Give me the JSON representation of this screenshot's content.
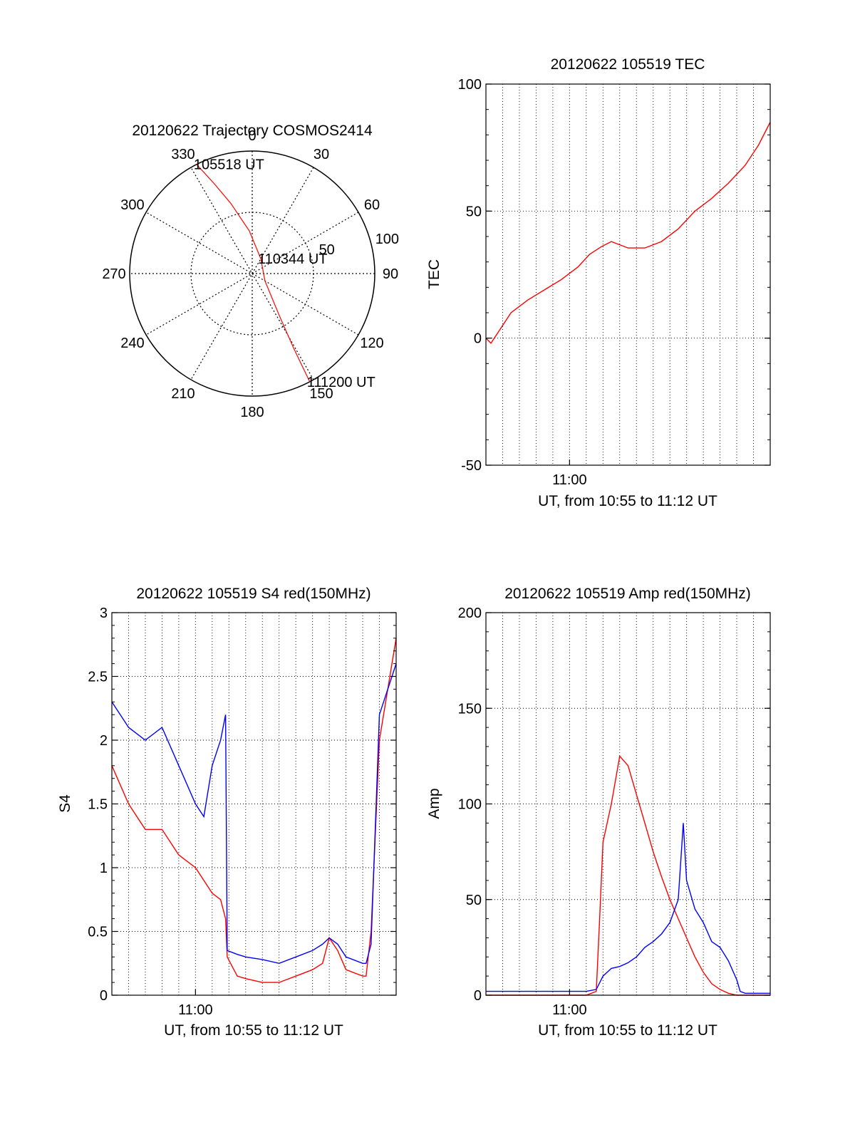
{
  "colors": {
    "red": "#ff0000",
    "blue": "#0000ff",
    "axis": "#000000",
    "grid": "#000000"
  },
  "chart_data": [
    {
      "id": "trajectory",
      "type": "polar",
      "title": "20120622 Trajectory COSMOS2414",
      "angle_labels": [
        "0",
        "30",
        "60",
        "90",
        "120",
        "150",
        "180",
        "210",
        "240",
        "270",
        "300",
        "330"
      ],
      "radius_labels": [
        "50",
        "100"
      ],
      "rlim": [
        0,
        100
      ],
      "grid": true,
      "path": [
        [
          333,
          100
        ],
        [
          337,
          80
        ],
        [
          343,
          60
        ],
        [
          356,
          35
        ],
        [
          30,
          14
        ],
        [
          120,
          12
        ],
        [
          147,
          40
        ],
        [
          151,
          70
        ],
        [
          152,
          100
        ]
      ],
      "annotations": [
        {
          "text": "105518 UT",
          "angle": 333,
          "r": 100
        },
        {
          "text": "110344 UT",
          "angle": 30,
          "r": 14
        },
        {
          "text": "111200 UT",
          "angle": 152,
          "r": 100
        }
      ]
    },
    {
      "id": "tec",
      "type": "line",
      "title": "20120622 105519 TEC",
      "xlabel": "UT, from 10:55 to 11:12 UT",
      "ylabel": "TEC",
      "xlim": [
        0,
        17
      ],
      "ylim": [
        -50,
        100
      ],
      "yticks": [
        -50,
        0,
        50,
        100
      ],
      "xticks": [
        {
          "value": 5,
          "label": "11:00"
        }
      ],
      "grid": true,
      "series": [
        {
          "color": "red",
          "x": [
            0,
            0.3,
            0.8,
            1.5,
            2.5,
            3.5,
            4.5,
            5.5,
            6.2,
            6.9,
            7.5,
            8.5,
            9.5,
            10.5,
            11.5,
            12.5,
            13.5,
            14.5,
            15.5,
            16.3,
            17
          ],
          "y": [
            0,
            -2,
            3,
            10,
            15,
            19,
            23,
            28,
            33,
            36,
            38,
            35.5,
            35.5,
            38,
            43,
            50,
            55,
            61,
            68,
            76,
            85
          ]
        }
      ]
    },
    {
      "id": "s4",
      "type": "line",
      "title": "20120622 105519 S4 red(150MHz)",
      "xlabel": "UT, from 10:55 to 11:12 UT",
      "ylabel": "S4",
      "xlim": [
        0,
        17
      ],
      "ylim": [
        0,
        3
      ],
      "yticks": [
        0,
        0.5,
        1,
        1.5,
        2,
        2.5,
        3
      ],
      "ytick_labels": [
        "0",
        "0.5",
        "1",
        "1.5",
        "2",
        "2.5",
        "3"
      ],
      "xticks": [
        {
          "value": 5,
          "label": "11:00"
        }
      ],
      "grid": true,
      "series": [
        {
          "color": "red",
          "x": [
            0,
            1,
            2,
            3,
            4,
            5,
            5.5,
            6,
            6.5,
            6.8,
            6.9,
            7.5,
            8,
            9,
            10,
            11,
            12,
            12.6,
            13,
            13.5,
            14,
            15,
            15.2,
            15.5,
            16,
            17
          ],
          "y": [
            1.8,
            1.5,
            1.3,
            1.3,
            1.1,
            1.0,
            0.9,
            0.8,
            0.75,
            0.6,
            0.3,
            0.15,
            0.13,
            0.1,
            0.1,
            0.15,
            0.2,
            0.25,
            0.45,
            0.35,
            0.2,
            0.15,
            0.15,
            0.5,
            2.0,
            2.8
          ]
        },
        {
          "color": "blue",
          "x": [
            0,
            1,
            2,
            3,
            4,
            5,
            5.5,
            6,
            6.5,
            6.8,
            6.9,
            7.5,
            8,
            9,
            10,
            11,
            12,
            12.6,
            13,
            13.5,
            14,
            15,
            15.2,
            15.5,
            16,
            17
          ],
          "y": [
            2.3,
            2.1,
            2.0,
            2.1,
            1.8,
            1.5,
            1.4,
            1.8,
            2.0,
            2.2,
            0.35,
            0.32,
            0.3,
            0.28,
            0.25,
            0.3,
            0.35,
            0.4,
            0.45,
            0.4,
            0.3,
            0.25,
            0.25,
            0.4,
            2.2,
            2.6
          ]
        }
      ]
    },
    {
      "id": "amp",
      "type": "line",
      "title": "20120622 105519 Amp red(150MHz)",
      "xlabel": "UT, from 10:55 to 11:12 UT",
      "ylabel": "Amp",
      "xlim": [
        0,
        17
      ],
      "ylim": [
        0,
        200
      ],
      "yticks": [
        0,
        50,
        100,
        150,
        200
      ],
      "xticks": [
        {
          "value": 5,
          "label": "11:00"
        }
      ],
      "grid": true,
      "series": [
        {
          "color": "red",
          "x": [
            0,
            2,
            4,
            6,
            6.6,
            6.8,
            7.0,
            7.5,
            8,
            8.5,
            9,
            9.5,
            10,
            10.5,
            11,
            11.5,
            12,
            12.5,
            13,
            13.5,
            14,
            14.5,
            15,
            15.5,
            16,
            17
          ],
          "y": [
            0,
            0,
            0,
            0,
            2,
            40,
            80,
            100,
            125,
            120,
            105,
            90,
            75,
            62,
            50,
            40,
            30,
            20,
            12,
            6,
            3,
            1,
            0,
            0,
            0,
            0
          ]
        },
        {
          "color": "blue",
          "x": [
            0,
            2,
            4,
            6,
            6.6,
            7,
            7.5,
            8,
            8.5,
            9,
            9.5,
            10,
            10.5,
            11,
            11.5,
            11.8,
            12,
            12.5,
            13,
            13.5,
            14,
            14.5,
            15,
            15.2,
            15.5,
            16,
            17
          ],
          "y": [
            2,
            2,
            2,
            2,
            3,
            10,
            14,
            15,
            17,
            20,
            25,
            28,
            32,
            38,
            50,
            90,
            60,
            45,
            38,
            28,
            25,
            18,
            8,
            2,
            1,
            1,
            1
          ]
        }
      ]
    }
  ]
}
